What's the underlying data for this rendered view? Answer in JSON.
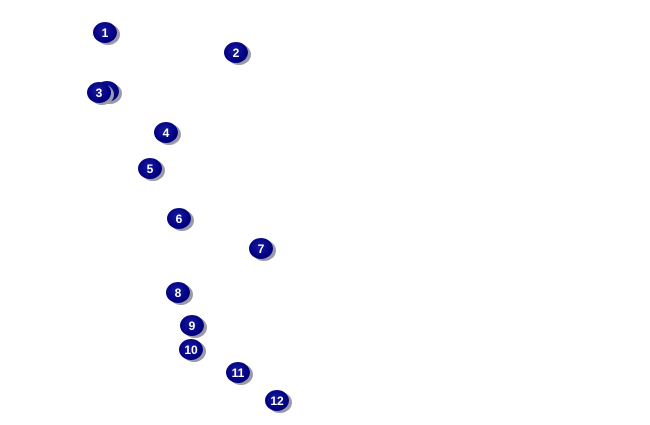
{
  "marker_color": "#000080",
  "markers": [
    {
      "label": "1"
    },
    {
      "label": "2"
    },
    {
      "label": "3"
    },
    {
      "label": "4"
    },
    {
      "label": "5"
    },
    {
      "label": "6"
    },
    {
      "label": "7"
    },
    {
      "label": "8"
    },
    {
      "label": "9"
    },
    {
      "label": "10"
    },
    {
      "label": "11"
    },
    {
      "label": "12"
    }
  ]
}
